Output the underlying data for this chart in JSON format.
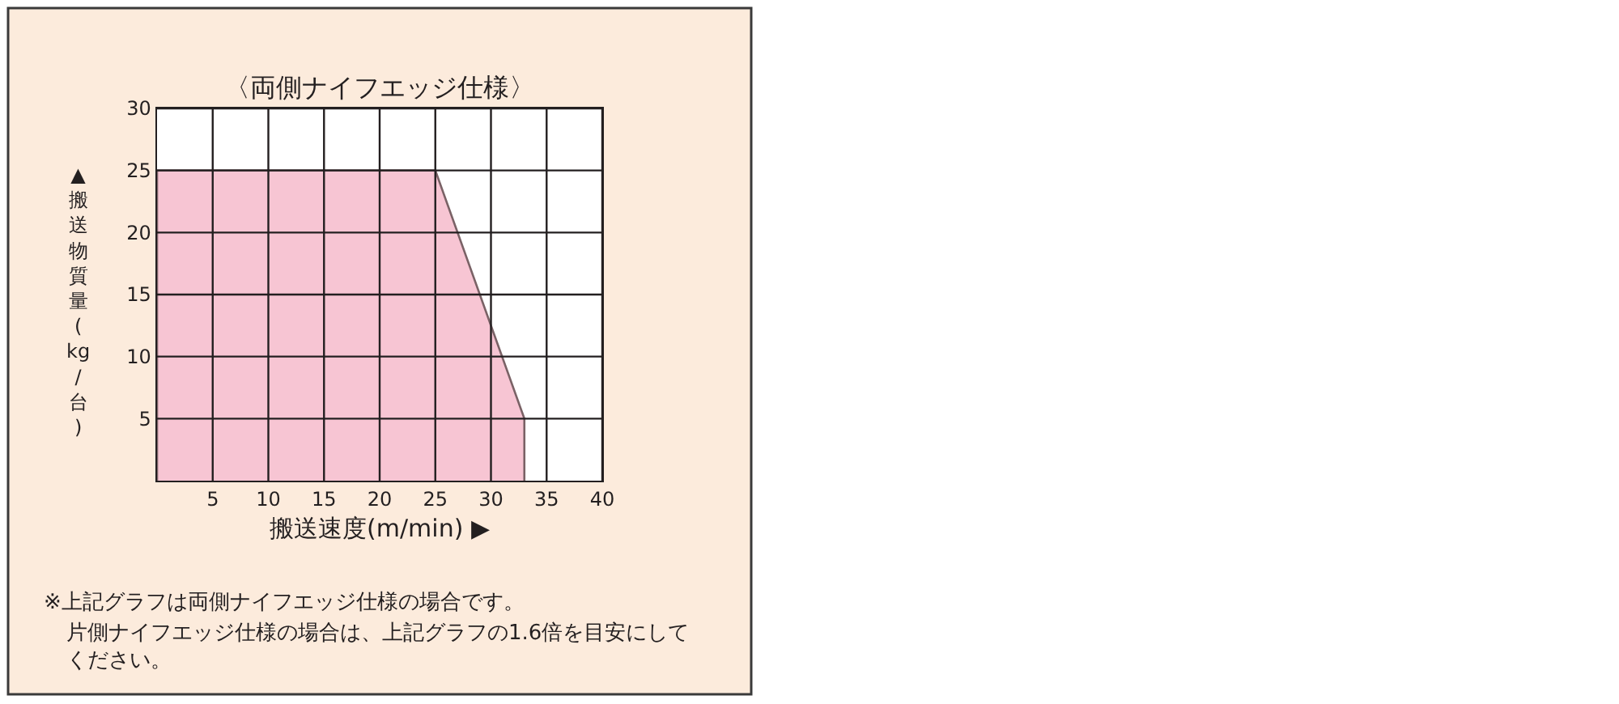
{
  "chart_data": {
    "type": "area",
    "title": "〈両側ナイフエッジ仕様〉",
    "xlabel": "搬送速度(m/min) ▶",
    "ylabel": "▲搬送物質量(kg/台)",
    "x": [
      0,
      0,
      25,
      33,
      33
    ],
    "values": [
      0,
      25,
      25,
      5,
      0
    ],
    "color": "#f7c5d3",
    "xlim": [
      0,
      40
    ],
    "xticks": [
      5,
      10,
      15,
      20,
      25,
      30,
      35,
      40
    ],
    "ylim": [
      0,
      30
    ],
    "yticks": [
      5,
      10,
      15,
      20,
      25,
      30
    ],
    "grid": true,
    "annotations": [
      "※上記グラフは両側ナイフエッジ仕様の場合です。",
      "片側ナイフエッジ仕様の場合は、上記グラフの1.6倍を目安にしてください。"
    ]
  }
}
